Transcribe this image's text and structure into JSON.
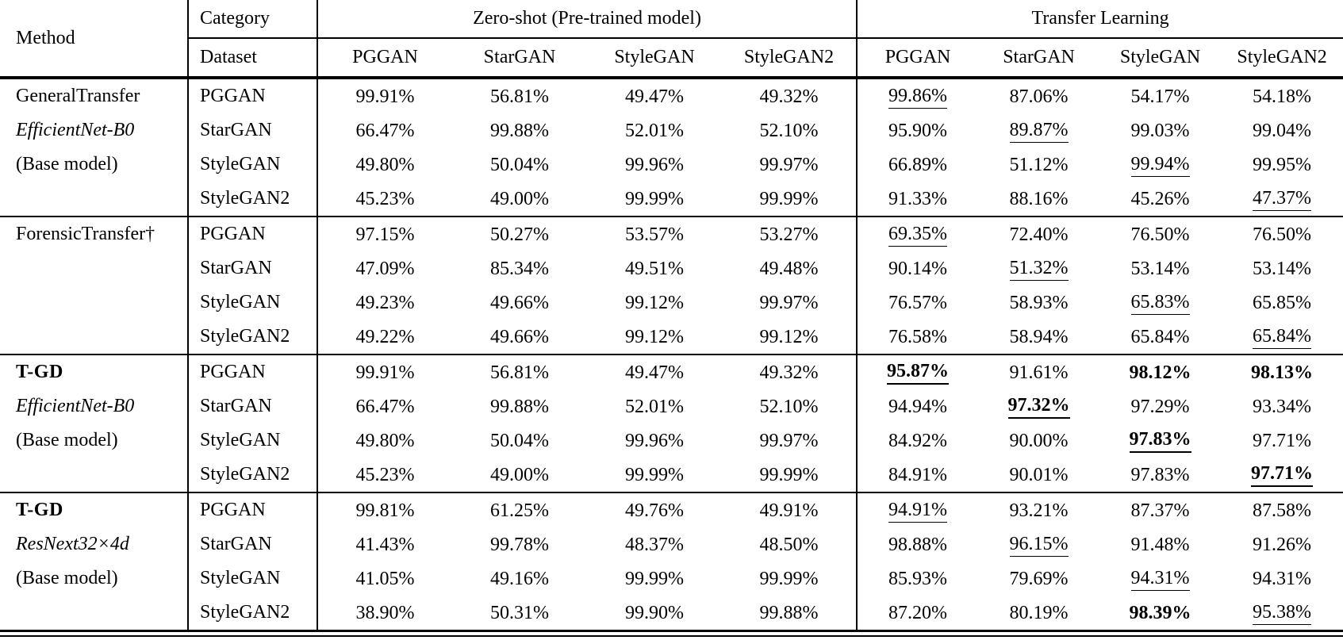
{
  "table": {
    "header": {
      "method": "Method",
      "category": "Category",
      "dataset": "Dataset",
      "zero_shot": "Zero-shot (Pre-trained model)",
      "transfer": "Transfer Learning",
      "zs_cols": [
        "PGGAN",
        "StarGAN",
        "StyleGAN",
        "StyleGAN2"
      ],
      "tl_cols": [
        "PGGAN",
        "StarGAN",
        "StyleGAN",
        "StyleGAN2"
      ]
    },
    "groups": [
      {
        "method_lines": [
          {
            "text": "GeneralTransfer",
            "style": ""
          },
          {
            "text": "EfficientNet-B0",
            "style": "i"
          },
          {
            "text": "(Base model)",
            "style": ""
          }
        ],
        "rows": [
          {
            "dataset": "PGGAN",
            "cells": [
              {
                "t": "99.91%",
                "s": ""
              },
              {
                "t": "56.81%",
                "s": ""
              },
              {
                "t": "49.47%",
                "s": ""
              },
              {
                "t": "49.32%",
                "s": ""
              },
              {
                "t": "99.86%",
                "s": "u"
              },
              {
                "t": "87.06%",
                "s": ""
              },
              {
                "t": "54.17%",
                "s": ""
              },
              {
                "t": "54.18%",
                "s": ""
              }
            ]
          },
          {
            "dataset": "StarGAN",
            "cells": [
              {
                "t": "66.47%",
                "s": ""
              },
              {
                "t": "99.88%",
                "s": ""
              },
              {
                "t": "52.01%",
                "s": ""
              },
              {
                "t": "52.10%",
                "s": ""
              },
              {
                "t": "95.90%",
                "s": ""
              },
              {
                "t": "89.87%",
                "s": "u"
              },
              {
                "t": "99.03%",
                "s": ""
              },
              {
                "t": "99.04%",
                "s": ""
              }
            ]
          },
          {
            "dataset": "StyleGAN",
            "cells": [
              {
                "t": "49.80%",
                "s": ""
              },
              {
                "t": "50.04%",
                "s": ""
              },
              {
                "t": "99.96%",
                "s": ""
              },
              {
                "t": "99.97%",
                "s": ""
              },
              {
                "t": "66.89%",
                "s": ""
              },
              {
                "t": "51.12%",
                "s": ""
              },
              {
                "t": "99.94%",
                "s": "u"
              },
              {
                "t": "99.95%",
                "s": ""
              }
            ]
          },
          {
            "dataset": "StyleGAN2",
            "cells": [
              {
                "t": "45.23%",
                "s": ""
              },
              {
                "t": "49.00%",
                "s": ""
              },
              {
                "t": "99.99%",
                "s": ""
              },
              {
                "t": "99.99%",
                "s": ""
              },
              {
                "t": "91.33%",
                "s": ""
              },
              {
                "t": "88.16%",
                "s": ""
              },
              {
                "t": "45.26%",
                "s": ""
              },
              {
                "t": "47.37%",
                "s": "u"
              }
            ]
          }
        ]
      },
      {
        "method_lines": [
          {
            "text": "ForensicTransfer†",
            "style": ""
          }
        ],
        "rows": [
          {
            "dataset": "PGGAN",
            "cells": [
              {
                "t": "97.15%",
                "s": ""
              },
              {
                "t": "50.27%",
                "s": ""
              },
              {
                "t": "53.57%",
                "s": ""
              },
              {
                "t": "53.27%",
                "s": ""
              },
              {
                "t": "69.35%",
                "s": "u"
              },
              {
                "t": "72.40%",
                "s": ""
              },
              {
                "t": "76.50%",
                "s": ""
              },
              {
                "t": "76.50%",
                "s": ""
              }
            ]
          },
          {
            "dataset": "StarGAN",
            "cells": [
              {
                "t": "47.09%",
                "s": ""
              },
              {
                "t": "85.34%",
                "s": ""
              },
              {
                "t": "49.51%",
                "s": ""
              },
              {
                "t": "49.48%",
                "s": ""
              },
              {
                "t": "90.14%",
                "s": ""
              },
              {
                "t": "51.32%",
                "s": "u"
              },
              {
                "t": "53.14%",
                "s": ""
              },
              {
                "t": "53.14%",
                "s": ""
              }
            ]
          },
          {
            "dataset": "StyleGAN",
            "cells": [
              {
                "t": "49.23%",
                "s": ""
              },
              {
                "t": "49.66%",
                "s": ""
              },
              {
                "t": "99.12%",
                "s": ""
              },
              {
                "t": "99.97%",
                "s": ""
              },
              {
                "t": "76.57%",
                "s": ""
              },
              {
                "t": "58.93%",
                "s": ""
              },
              {
                "t": "65.83%",
                "s": "u"
              },
              {
                "t": "65.85%",
                "s": ""
              }
            ]
          },
          {
            "dataset": "StyleGAN2",
            "cells": [
              {
                "t": "49.22%",
                "s": ""
              },
              {
                "t": "49.66%",
                "s": ""
              },
              {
                "t": "99.12%",
                "s": ""
              },
              {
                "t": "99.12%",
                "s": ""
              },
              {
                "t": "76.58%",
                "s": ""
              },
              {
                "t": "58.94%",
                "s": ""
              },
              {
                "t": "65.84%",
                "s": ""
              },
              {
                "t": "65.84%",
                "s": "u"
              }
            ]
          }
        ]
      },
      {
        "method_lines": [
          {
            "text": "T-GD",
            "style": "b"
          },
          {
            "text": "EfficientNet-B0",
            "style": "i"
          },
          {
            "text": "(Base model)",
            "style": ""
          }
        ],
        "rows": [
          {
            "dataset": "PGGAN",
            "cells": [
              {
                "t": "99.91%",
                "s": ""
              },
              {
                "t": "56.81%",
                "s": ""
              },
              {
                "t": "49.47%",
                "s": ""
              },
              {
                "t": "49.32%",
                "s": ""
              },
              {
                "t": "95.87%",
                "s": "bu"
              },
              {
                "t": "91.61%",
                "s": ""
              },
              {
                "t": "98.12%",
                "s": "b"
              },
              {
                "t": "98.13%",
                "s": "b"
              }
            ]
          },
          {
            "dataset": "StarGAN",
            "cells": [
              {
                "t": "66.47%",
                "s": ""
              },
              {
                "t": "99.88%",
                "s": ""
              },
              {
                "t": "52.01%",
                "s": ""
              },
              {
                "t": "52.10%",
                "s": ""
              },
              {
                "t": "94.94%",
                "s": ""
              },
              {
                "t": "97.32%",
                "s": "bu"
              },
              {
                "t": "97.29%",
                "s": ""
              },
              {
                "t": "93.34%",
                "s": ""
              }
            ]
          },
          {
            "dataset": "StyleGAN",
            "cells": [
              {
                "t": "49.80%",
                "s": ""
              },
              {
                "t": "50.04%",
                "s": ""
              },
              {
                "t": "99.96%",
                "s": ""
              },
              {
                "t": "99.97%",
                "s": ""
              },
              {
                "t": "84.92%",
                "s": ""
              },
              {
                "t": "90.00%",
                "s": ""
              },
              {
                "t": "97.83%",
                "s": "bu"
              },
              {
                "t": "97.71%",
                "s": ""
              }
            ]
          },
          {
            "dataset": "StyleGAN2",
            "cells": [
              {
                "t": "45.23%",
                "s": ""
              },
              {
                "t": "49.00%",
                "s": ""
              },
              {
                "t": "99.99%",
                "s": ""
              },
              {
                "t": "99.99%",
                "s": ""
              },
              {
                "t": "84.91%",
                "s": ""
              },
              {
                "t": "90.01%",
                "s": ""
              },
              {
                "t": "97.83%",
                "s": ""
              },
              {
                "t": "97.71%",
                "s": "bu"
              }
            ]
          }
        ]
      },
      {
        "method_lines": [
          {
            "text": "T-GD",
            "style": "b"
          },
          {
            "text": "ResNext32×4d",
            "style": "i"
          },
          {
            "text": "(Base model)",
            "style": ""
          }
        ],
        "rows": [
          {
            "dataset": "PGGAN",
            "cells": [
              {
                "t": "99.81%",
                "s": ""
              },
              {
                "t": "61.25%",
                "s": ""
              },
              {
                "t": "49.76%",
                "s": ""
              },
              {
                "t": "49.91%",
                "s": ""
              },
              {
                "t": "94.91%",
                "s": "u"
              },
              {
                "t": "93.21%",
                "s": ""
              },
              {
                "t": "87.37%",
                "s": ""
              },
              {
                "t": "87.58%",
                "s": ""
              }
            ]
          },
          {
            "dataset": "StarGAN",
            "cells": [
              {
                "t": "41.43%",
                "s": ""
              },
              {
                "t": "99.78%",
                "s": ""
              },
              {
                "t": "48.37%",
                "s": ""
              },
              {
                "t": "48.50%",
                "s": ""
              },
              {
                "t": "98.88%",
                "s": ""
              },
              {
                "t": "96.15%",
                "s": "u"
              },
              {
                "t": "91.48%",
                "s": ""
              },
              {
                "t": "91.26%",
                "s": ""
              }
            ]
          },
          {
            "dataset": "StyleGAN",
            "cells": [
              {
                "t": "41.05%",
                "s": ""
              },
              {
                "t": "49.16%",
                "s": ""
              },
              {
                "t": "99.99%",
                "s": ""
              },
              {
                "t": "99.99%",
                "s": ""
              },
              {
                "t": "85.93%",
                "s": ""
              },
              {
                "t": "79.69%",
                "s": ""
              },
              {
                "t": "94.31%",
                "s": "u"
              },
              {
                "t": "94.31%",
                "s": ""
              }
            ]
          },
          {
            "dataset": "StyleGAN2",
            "cells": [
              {
                "t": "38.90%",
                "s": ""
              },
              {
                "t": "50.31%",
                "s": ""
              },
              {
                "t": "99.90%",
                "s": ""
              },
              {
                "t": "99.88%",
                "s": ""
              },
              {
                "t": "87.20%",
                "s": ""
              },
              {
                "t": "80.19%",
                "s": ""
              },
              {
                "t": "98.39%",
                "s": "b"
              },
              {
                "t": "95.38%",
                "s": "u"
              }
            ]
          }
        ]
      }
    ]
  }
}
